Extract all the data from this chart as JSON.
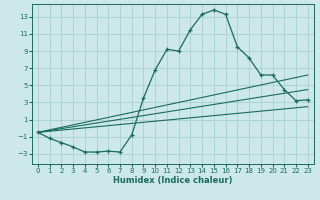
{
  "xlabel": "Humidex (Indice chaleur)",
  "bg_color": "#cce8e8",
  "grid_color": "#aacece",
  "line_color": "#1a6b5a",
  "xlim": [
    -0.5,
    23.5
  ],
  "ylim": [
    -4.2,
    14.5
  ],
  "yticks": [
    -3,
    -1,
    1,
    3,
    5,
    7,
    9,
    11,
    13
  ],
  "xticks": [
    0,
    1,
    2,
    3,
    4,
    5,
    6,
    7,
    8,
    9,
    10,
    11,
    12,
    13,
    14,
    15,
    16,
    17,
    18,
    19,
    20,
    21,
    22,
    23
  ],
  "curve1_x": [
    0,
    1,
    2,
    3,
    4,
    5,
    6,
    7,
    8,
    9,
    10,
    11,
    12,
    13,
    14,
    15,
    16,
    17,
    18,
    19,
    20,
    21,
    22,
    23
  ],
  "curve1_y": [
    -0.5,
    -1.2,
    -1.7,
    -2.2,
    -2.8,
    -2.8,
    -2.7,
    -2.8,
    -0.8,
    3.5,
    6.8,
    9.2,
    9.0,
    11.5,
    13.3,
    13.8,
    13.3,
    9.5,
    8.2,
    6.2,
    6.2,
    4.5,
    3.2,
    3.3
  ],
  "line1_x": [
    0,
    23
  ],
  "line1_y": [
    -0.5,
    2.5
  ],
  "line2_x": [
    0,
    23
  ],
  "line2_y": [
    -0.5,
    4.5
  ],
  "line3_x": [
    0,
    23
  ],
  "line3_y": [
    -0.5,
    6.2
  ]
}
